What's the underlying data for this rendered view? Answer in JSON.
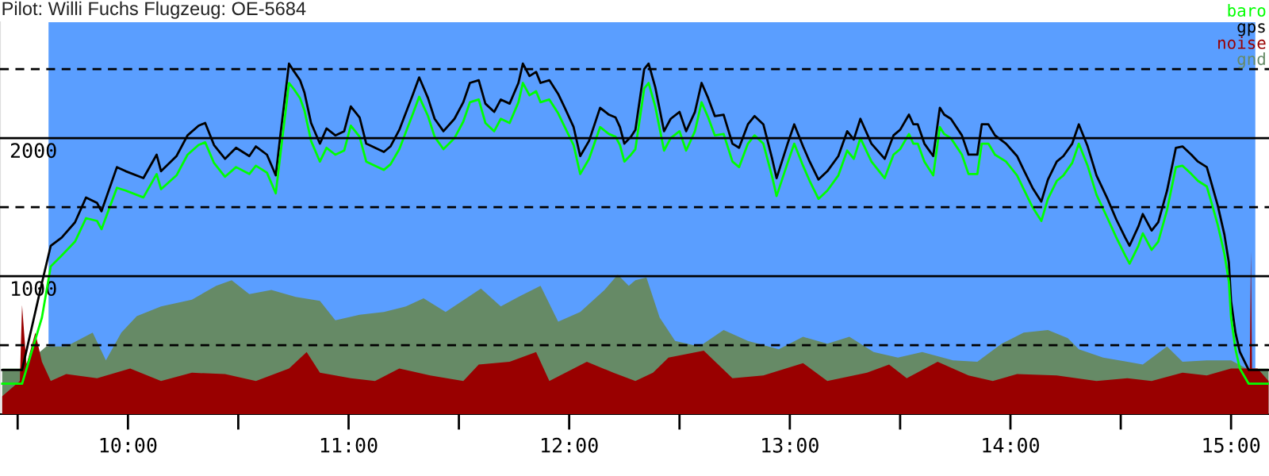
{
  "chart_data": {
    "type": "line",
    "title": "Pilot: Willi Fuchs Flugzeug: OE-5684",
    "xlim": [
      9.42,
      15.172
    ],
    "ylim": [
      0,
      2840
    ],
    "xticks": [
      {
        "value": 9.5,
        "label": null
      },
      {
        "value": 10,
        "label": "10:00"
      },
      {
        "value": 10.5,
        "label": null
      },
      {
        "value": 11,
        "label": "11:00"
      },
      {
        "value": 11.5,
        "label": null
      },
      {
        "value": 12,
        "label": "12:00"
      },
      {
        "value": 12.5,
        "label": null
      },
      {
        "value": 13,
        "label": "13:00"
      },
      {
        "value": 13.5,
        "label": null
      },
      {
        "value": 14,
        "label": "14:00"
      },
      {
        "value": 14.5,
        "label": null
      },
      {
        "value": 15,
        "label": "15:00"
      }
    ],
    "yticks": [
      1000,
      2000
    ],
    "grid": false,
    "legend": "top right",
    "bands": [
      {
        "axis": "x",
        "from": 9.64,
        "to": 15.11,
        "color": "#5a9eff"
      }
    ],
    "ref_lines": [
      {
        "axis": "y",
        "value": 500,
        "color": "#000000",
        "line_style": "dashed"
      },
      {
        "axis": "y",
        "value": 1000,
        "color": "#000000",
        "line_style": "solid"
      },
      {
        "axis": "y",
        "value": 1500,
        "color": "#000000",
        "line_style": "dashed"
      },
      {
        "axis": "y",
        "value": 2000,
        "color": "#000000",
        "line_style": "solid"
      },
      {
        "axis": "y",
        "value": 2500,
        "color": "#000000",
        "line_style": "dashed"
      }
    ],
    "series": [
      {
        "name": "baro",
        "color": "#00ff00",
        "x": [
          9.43,
          9.52,
          9.61,
          9.65,
          9.7,
          9.76,
          9.81,
          9.86,
          9.88,
          9.95,
          9.99,
          10.07,
          10.13,
          10.15,
          10.22,
          10.27,
          10.32,
          10.35,
          10.39,
          10.44,
          10.49,
          10.55,
          10.58,
          10.63,
          10.67,
          10.69,
          10.73,
          10.75,
          10.78,
          10.8,
          10.83,
          10.87,
          10.9,
          10.94,
          10.98,
          11.01,
          11.05,
          11.08,
          11.12,
          11.16,
          11.19,
          11.23,
          11.29,
          11.32,
          11.36,
          11.39,
          11.43,
          11.48,
          11.52,
          11.55,
          11.59,
          11.62,
          11.66,
          11.69,
          11.73,
          11.77,
          11.79,
          11.82,
          11.85,
          11.87,
          11.91,
          11.95,
          11.98,
          12.02,
          12.05,
          12.09,
          12.14,
          12.18,
          12.21,
          12.23,
          12.25,
          12.28,
          12.3,
          12.34,
          12.36,
          12.39,
          12.43,
          12.46,
          12.5,
          12.53,
          12.57,
          12.6,
          12.63,
          12.66,
          12.7,
          12.74,
          12.77,
          12.81,
          12.84,
          12.88,
          12.92,
          12.94,
          12.99,
          13.02,
          13.06,
          13.09,
          13.13,
          13.17,
          13.22,
          13.26,
          13.29,
          13.32,
          13.37,
          13.43,
          13.47,
          13.5,
          13.54,
          13.56,
          13.58,
          13.61,
          13.65,
          13.68,
          13.7,
          13.73,
          13.78,
          13.81,
          13.85,
          13.87,
          13.9,
          13.93,
          13.98,
          14.03,
          14.06,
          14.1,
          14.14,
          14.17,
          14.21,
          14.24,
          14.28,
          14.31,
          14.35,
          14.39,
          14.44,
          14.48,
          14.52,
          14.54,
          14.58,
          14.6,
          14.64,
          14.67,
          14.71,
          14.75,
          14.78,
          14.82,
          14.85,
          14.89,
          14.91,
          14.94,
          14.97,
          14.99,
          15.0,
          15.02,
          15.04,
          15.08,
          15.17
        ],
        "values": [
          220,
          220,
          700,
          1070,
          1150,
          1250,
          1420,
          1400,
          1340,
          1640,
          1620,
          1570,
          1740,
          1630,
          1730,
          1880,
          1950,
          1970,
          1820,
          1720,
          1790,
          1740,
          1800,
          1750,
          1600,
          1870,
          2400,
          2360,
          2290,
          2200,
          1980,
          1830,
          1930,
          1880,
          1910,
          2090,
          2010,
          1830,
          1800,
          1770,
          1810,
          1920,
          2170,
          2300,
          2160,
          2010,
          1920,
          2000,
          2120,
          2260,
          2280,
          2110,
          2050,
          2140,
          2110,
          2260,
          2400,
          2310,
          2340,
          2260,
          2280,
          2180,
          2080,
          1950,
          1740,
          1850,
          2080,
          2030,
          2010,
          1950,
          1830,
          1880,
          1920,
          2360,
          2400,
          2230,
          1910,
          2000,
          2050,
          1910,
          2050,
          2260,
          2150,
          2020,
          2030,
          1830,
          1790,
          1960,
          2020,
          1960,
          1720,
          1580,
          1820,
          1960,
          1800,
          1690,
          1560,
          1620,
          1730,
          1910,
          1850,
          2000,
          1830,
          1710,
          1880,
          1920,
          2030,
          1960,
          1960,
          1830,
          1730,
          2080,
          2030,
          2000,
          1880,
          1740,
          1740,
          1960,
          1960,
          1880,
          1830,
          1730,
          1630,
          1500,
          1400,
          1560,
          1690,
          1730,
          1820,
          1960,
          1800,
          1590,
          1420,
          1280,
          1150,
          1090,
          1220,
          1310,
          1190,
          1250,
          1480,
          1790,
          1800,
          1740,
          1690,
          1650,
          1540,
          1370,
          1160,
          960,
          700,
          470,
          330,
          220,
          220
        ]
      },
      {
        "name": "gps",
        "color": "#000000",
        "x": [
          9.43,
          9.52,
          9.61,
          9.65,
          9.7,
          9.76,
          9.81,
          9.86,
          9.88,
          9.95,
          9.99,
          10.07,
          10.13,
          10.15,
          10.22,
          10.27,
          10.32,
          10.35,
          10.39,
          10.44,
          10.49,
          10.55,
          10.58,
          10.63,
          10.67,
          10.69,
          10.73,
          10.75,
          10.78,
          10.8,
          10.83,
          10.87,
          10.9,
          10.94,
          10.98,
          11.01,
          11.05,
          11.08,
          11.12,
          11.16,
          11.19,
          11.23,
          11.29,
          11.32,
          11.36,
          11.39,
          11.43,
          11.48,
          11.52,
          11.55,
          11.59,
          11.62,
          11.66,
          11.69,
          11.73,
          11.77,
          11.79,
          11.82,
          11.85,
          11.87,
          11.91,
          11.95,
          11.98,
          12.02,
          12.05,
          12.09,
          12.14,
          12.18,
          12.21,
          12.23,
          12.25,
          12.28,
          12.3,
          12.34,
          12.36,
          12.39,
          12.43,
          12.46,
          12.5,
          12.53,
          12.57,
          12.6,
          12.63,
          12.66,
          12.7,
          12.74,
          12.77,
          12.81,
          12.84,
          12.88,
          12.92,
          12.94,
          12.99,
          13.02,
          13.06,
          13.09,
          13.13,
          13.17,
          13.22,
          13.26,
          13.29,
          13.32,
          13.37,
          13.43,
          13.47,
          13.5,
          13.54,
          13.56,
          13.58,
          13.61,
          13.65,
          13.68,
          13.7,
          13.73,
          13.78,
          13.81,
          13.85,
          13.87,
          13.9,
          13.93,
          13.98,
          14.03,
          14.06,
          14.1,
          14.14,
          14.17,
          14.21,
          14.24,
          14.28,
          14.31,
          14.35,
          14.39,
          14.44,
          14.48,
          14.52,
          14.54,
          14.58,
          14.6,
          14.64,
          14.67,
          14.71,
          14.75,
          14.78,
          14.82,
          14.85,
          14.89,
          14.91,
          14.94,
          14.97,
          14.99,
          15.0,
          15.02,
          15.04,
          15.08,
          15.17
        ],
        "values": [
          320,
          320,
          950,
          1220,
          1280,
          1390,
          1570,
          1530,
          1470,
          1790,
          1760,
          1710,
          1880,
          1760,
          1870,
          2020,
          2090,
          2110,
          1950,
          1850,
          1930,
          1870,
          1940,
          1880,
          1730,
          2010,
          2540,
          2490,
          2420,
          2330,
          2110,
          1960,
          2070,
          2020,
          2050,
          2230,
          2150,
          1960,
          1930,
          1900,
          1940,
          2060,
          2310,
          2440,
          2290,
          2140,
          2050,
          2140,
          2260,
          2400,
          2420,
          2250,
          2190,
          2280,
          2250,
          2400,
          2540,
          2450,
          2480,
          2400,
          2420,
          2320,
          2220,
          2080,
          1870,
          1980,
          2220,
          2170,
          2150,
          2080,
          1960,
          2010,
          2060,
          2500,
          2540,
          2370,
          2050,
          2140,
          2190,
          2050,
          2190,
          2400,
          2290,
          2160,
          2170,
          1960,
          1930,
          2100,
          2160,
          2100,
          1850,
          1710,
          1960,
          2100,
          1940,
          1830,
          1700,
          1760,
          1870,
          2050,
          1990,
          2140,
          1960,
          1850,
          2020,
          2060,
          2170,
          2100,
          2100,
          1960,
          1870,
          2220,
          2170,
          2140,
          2020,
          1880,
          1880,
          2100,
          2100,
          2020,
          1960,
          1870,
          1770,
          1640,
          1540,
          1700,
          1830,
          1870,
          1960,
          2100,
          1940,
          1730,
          1560,
          1410,
          1280,
          1220,
          1360,
          1450,
          1330,
          1390,
          1620,
          1930,
          1940,
          1880,
          1830,
          1790,
          1680,
          1510,
          1300,
          1100,
          820,
          590,
          450,
          320,
          320
        ]
      },
      {
        "name": "noise",
        "type": "area",
        "color": "#990000",
        "x": [
          9.43,
          9.51,
          9.52,
          9.54,
          9.58,
          9.61,
          9.65,
          9.72,
          9.86,
          10.01,
          10.15,
          10.29,
          10.44,
          10.58,
          10.73,
          10.81,
          10.87,
          11.01,
          11.12,
          11.23,
          11.37,
          11.52,
          11.59,
          11.73,
          11.85,
          11.91,
          12.08,
          12.2,
          12.3,
          12.38,
          12.45,
          12.61,
          12.74,
          12.88,
          13.06,
          13.17,
          13.35,
          13.45,
          13.53,
          13.67,
          13.81,
          13.92,
          14.03,
          14.21,
          14.39,
          14.53,
          14.64,
          14.78,
          14.89,
          15.0,
          15.085,
          15.09,
          15.095,
          15.12,
          15.17
        ],
        "values": [
          130,
          240,
          790,
          360,
          590,
          380,
          240,
          290,
          260,
          330,
          240,
          300,
          290,
          240,
          330,
          450,
          300,
          260,
          240,
          330,
          280,
          240,
          360,
          380,
          450,
          240,
          380,
          300,
          240,
          300,
          410,
          460,
          260,
          280,
          370,
          240,
          300,
          360,
          260,
          380,
          280,
          240,
          290,
          280,
          240,
          260,
          240,
          300,
          280,
          330,
          330,
          1180,
          330,
          330,
          240
        ]
      },
      {
        "name": "gnd",
        "type": "area",
        "color": "#668a66",
        "x": [
          9.43,
          9.51,
          9.63,
          9.72,
          9.84,
          9.9,
          9.97,
          10.04,
          10.15,
          10.29,
          10.4,
          10.47,
          10.55,
          10.65,
          10.76,
          10.87,
          10.94,
          11.05,
          11.16,
          11.26,
          11.34,
          11.44,
          11.6,
          11.69,
          11.77,
          11.87,
          11.95,
          12.05,
          12.16,
          12.22,
          12.27,
          12.3,
          12.35,
          12.41,
          12.48,
          12.59,
          12.7,
          12.81,
          12.95,
          13.06,
          13.17,
          13.27,
          13.38,
          13.49,
          13.6,
          13.74,
          13.85,
          13.96,
          14.06,
          14.17,
          14.26,
          14.31,
          14.42,
          14.53,
          14.6,
          14.71,
          14.78,
          14.89,
          15.0,
          15.07,
          15.17
        ],
        "values": [
          330,
          330,
          490,
          490,
          590,
          390,
          590,
          710,
          780,
          830,
          930,
          970,
          870,
          900,
          850,
          820,
          680,
          720,
          740,
          780,
          840,
          740,
          910,
          780,
          850,
          930,
          670,
          740,
          900,
          1010,
          930,
          970,
          990,
          700,
          530,
          490,
          610,
          530,
          470,
          560,
          510,
          560,
          450,
          410,
          450,
          390,
          380,
          510,
          590,
          610,
          550,
          470,
          410,
          380,
          360,
          490,
          380,
          390,
          390,
          330,
          330
        ]
      }
    ]
  }
}
